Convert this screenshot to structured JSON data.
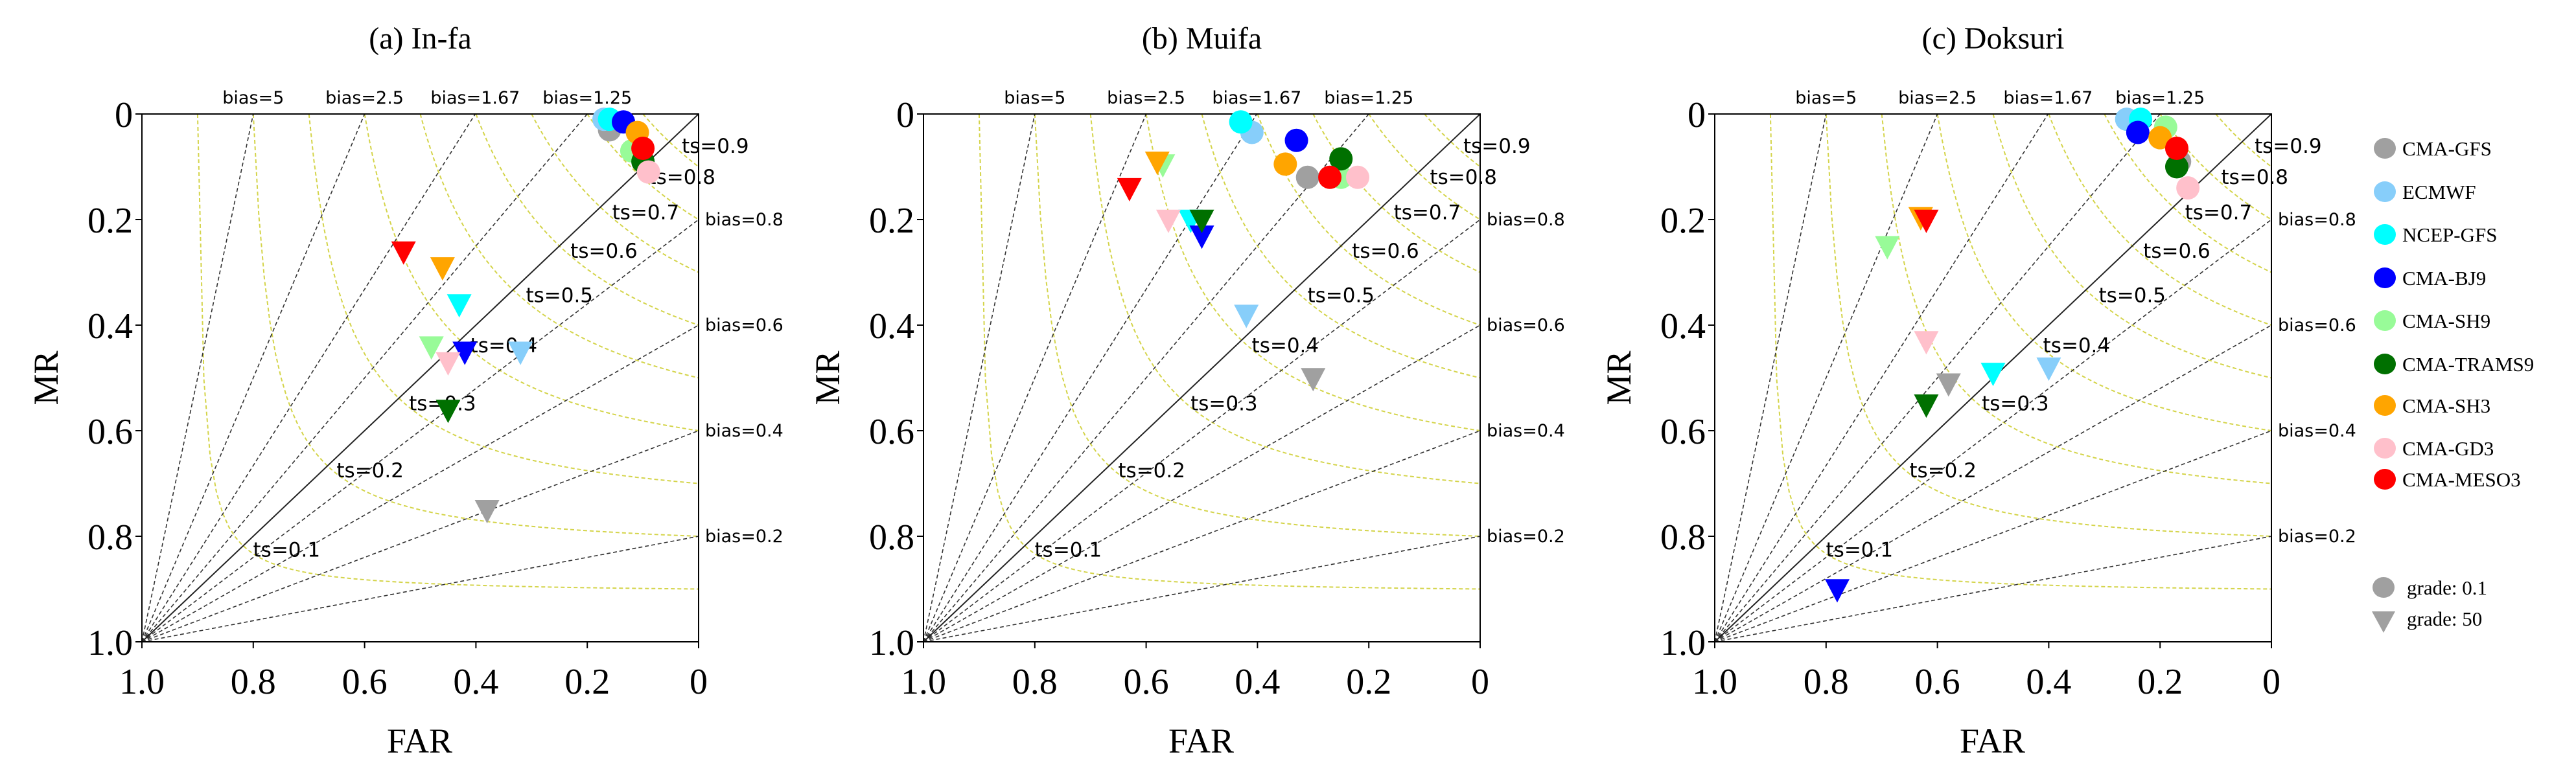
{
  "chart_data": [
    {
      "type": "scatter",
      "title": "(a) In-fa",
      "xlabel": "FAR",
      "ylabel": "MR",
      "xlim": [
        1.0,
        0
      ],
      "ylim": [
        0,
        1.0
      ],
      "x_ticks": [
        "1.0",
        "0.8",
        "0.6",
        "0.4",
        "0.2",
        "0"
      ],
      "y_ticks": [
        "0",
        "0.2",
        "0.4",
        "0.6",
        "0.8",
        "1.0"
      ],
      "points": {
        "grade_0.1": {
          "CMA-GFS": [
            0.16,
            0.03
          ],
          "ECMWF": [
            0.17,
            0.01
          ],
          "NCEP-GFS": [
            0.16,
            0.01
          ],
          "CMA-BJ9": [
            0.135,
            0.015
          ],
          "CMA-SH9": [
            0.12,
            0.07
          ],
          "CMA-TRAMS9": [
            0.1,
            0.09
          ],
          "CMA-SH3": [
            0.11,
            0.035
          ],
          "CMA-GD3": [
            0.09,
            0.11
          ],
          "CMA-MESO3": [
            0.1,
            0.065
          ]
        },
        "grade_50": {
          "CMA-GFS": [
            0.38,
            0.75
          ],
          "ECMWF": [
            0.32,
            0.45
          ],
          "NCEP-GFS": [
            0.43,
            0.36
          ],
          "CMA-BJ9": [
            0.42,
            0.45
          ],
          "CMA-SH9": [
            0.48,
            0.44
          ],
          "CMA-TRAMS9": [
            0.45,
            0.56
          ],
          "CMA-SH3": [
            0.46,
            0.29
          ],
          "CMA-GD3": [
            0.45,
            0.47
          ],
          "CMA-MESO3": [
            0.53,
            0.26
          ]
        }
      }
    },
    {
      "type": "scatter",
      "title": "(b) Muifa",
      "xlabel": "FAR",
      "ylabel": "MR",
      "xlim": [
        1.0,
        0
      ],
      "ylim": [
        0,
        1.0
      ],
      "x_ticks": [
        "1.0",
        "0.8",
        "0.6",
        "0.4",
        "0.2",
        "0"
      ],
      "y_ticks": [
        "0",
        "0.2",
        "0.4",
        "0.6",
        "0.8",
        "1.0"
      ],
      "points": {
        "grade_0.1": {
          "CMA-GFS": [
            0.31,
            0.12
          ],
          "ECMWF": [
            0.41,
            0.035
          ],
          "NCEP-GFS": [
            0.43,
            0.015
          ],
          "CMA-BJ9": [
            0.33,
            0.05
          ],
          "CMA-SH9": [
            0.25,
            0.12
          ],
          "CMA-TRAMS9": [
            0.25,
            0.085
          ],
          "CMA-SH3": [
            0.35,
            0.095
          ],
          "CMA-GD3": [
            0.22,
            0.12
          ],
          "CMA-MESO3": [
            0.27,
            0.12
          ]
        },
        "grade_50": {
          "CMA-GFS": [
            0.3,
            0.5
          ],
          "ECMWF": [
            0.42,
            0.38
          ],
          "NCEP-GFS": [
            0.52,
            0.2
          ],
          "CMA-BJ9": [
            0.5,
            0.23
          ],
          "CMA-SH9": [
            0.57,
            0.095
          ],
          "CMA-TRAMS9": [
            0.5,
            0.2
          ],
          "CMA-SH3": [
            0.58,
            0.09
          ],
          "CMA-GD3": [
            0.56,
            0.2
          ],
          "CMA-MESO3": [
            0.63,
            0.14
          ]
        }
      }
    },
    {
      "type": "scatter",
      "title": "(c) Doksuri",
      "xlabel": "FAR",
      "ylabel": "MR",
      "xlim": [
        1.0,
        0
      ],
      "ylim": [
        0,
        1.0
      ],
      "x_ticks": [
        "1.0",
        "0.8",
        "0.6",
        "0.4",
        "0.2",
        "0"
      ],
      "y_ticks": [
        "0",
        "0.2",
        "0.4",
        "0.6",
        "0.8",
        "1.0"
      ],
      "points": {
        "grade_0.1": {
          "CMA-GFS": [
            0.165,
            0.09
          ],
          "ECMWF": [
            0.26,
            0.01
          ],
          "NCEP-GFS": [
            0.235,
            0.01
          ],
          "CMA-BJ9": [
            0.24,
            0.035
          ],
          "CMA-SH9": [
            0.19,
            0.025
          ],
          "CMA-TRAMS9": [
            0.17,
            0.1
          ],
          "CMA-SH3": [
            0.2,
            0.045
          ],
          "CMA-GD3": [
            0.15,
            0.14
          ],
          "CMA-MESO3": [
            0.17,
            0.065
          ]
        },
        "grade_50": {
          "CMA-GFS": [
            0.58,
            0.51
          ],
          "ECMWF": [
            0.4,
            0.48
          ],
          "NCEP-GFS": [
            0.5,
            0.49
          ],
          "CMA-BJ9": [
            0.78,
            0.9
          ],
          "CMA-SH9": [
            0.69,
            0.25
          ],
          "CMA-TRAMS9": [
            0.62,
            0.55
          ],
          "CMA-SH3": [
            0.63,
            0.195
          ],
          "CMA-GD3": [
            0.62,
            0.43
          ],
          "CMA-MESO3": [
            0.62,
            0.2
          ]
        }
      }
    }
  ],
  "series": [
    {
      "name": "CMA-GFS",
      "color": "#a0a0a0"
    },
    {
      "name": "ECMWF",
      "color": "#87cefa"
    },
    {
      "name": "NCEP-GFS",
      "color": "#00ffff"
    },
    {
      "name": "CMA-BJ9",
      "color": "#0000ff"
    },
    {
      "name": "CMA-SH9",
      "color": "#98fb98"
    },
    {
      "name": "CMA-TRAMS9",
      "color": "#007000"
    },
    {
      "name": "CMA-SH3",
      "color": "#ffa500"
    },
    {
      "name": "CMA-GD3",
      "color": "#ffc0cb"
    },
    {
      "name": "CMA-MESO3",
      "color": "#ff0000"
    }
  ],
  "grades": [
    {
      "key": "grade_0.1",
      "label": "grade: 0.1",
      "marker": "circle"
    },
    {
      "key": "grade_50",
      "label": "grade: 50",
      "marker": "triangle-down"
    }
  ],
  "bias_lines": [
    {
      "value": 5,
      "label": "bias=5"
    },
    {
      "value": 2.5,
      "label": "bias=2.5"
    },
    {
      "value": 1.67,
      "label": "bias=1.67"
    },
    {
      "value": 1.25,
      "label": "bias=1.25"
    },
    {
      "value": 1,
      "label": ""
    },
    {
      "value": 0.8,
      "label": "bias=0.8"
    },
    {
      "value": 0.6,
      "label": "bias=0.6"
    },
    {
      "value": 0.4,
      "label": "bias=0.4"
    },
    {
      "value": 0.2,
      "label": "bias=0.2"
    }
  ],
  "ts_curves": [
    {
      "value": 0.1,
      "label": "ts=0.1"
    },
    {
      "value": 0.2,
      "label": "ts=0.2"
    },
    {
      "value": 0.3,
      "label": "ts=0.3"
    },
    {
      "value": 0.4,
      "label": "ts=0.4"
    },
    {
      "value": 0.5,
      "label": "ts=0.5"
    },
    {
      "value": 0.6,
      "label": "ts=0.6"
    },
    {
      "value": 0.7,
      "label": "ts=0.7"
    },
    {
      "value": 0.8,
      "label": "ts=0.8"
    },
    {
      "value": 0.9,
      "label": "ts=0.9"
    }
  ],
  "colors": {
    "bias_line": "#333333",
    "ts_curve": "#d4d44a",
    "grade_marker": "#a0a0a0"
  }
}
